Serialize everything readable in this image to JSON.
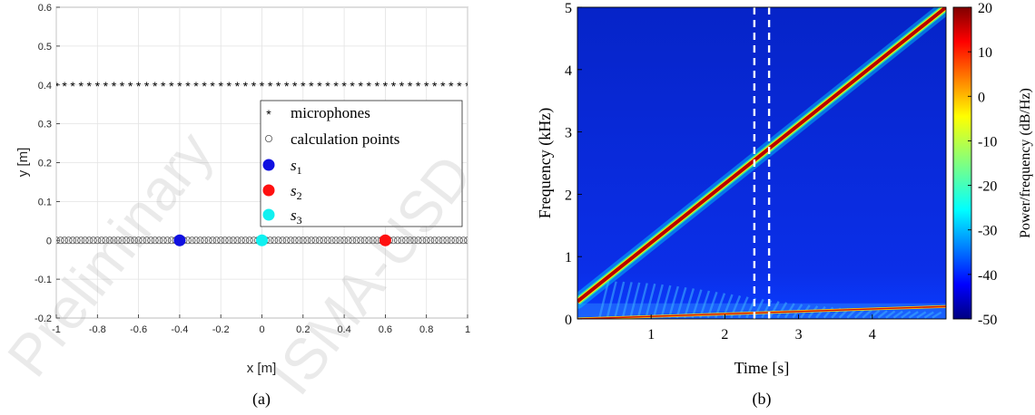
{
  "chart_data": [
    {
      "type": "scatter",
      "caption": "(a)",
      "xlabel": "x [m]",
      "ylabel": "y [m]",
      "xlim": [
        -1,
        1
      ],
      "ylim": [
        -0.2,
        0.6
      ],
      "xticks": [
        -1,
        -0.8,
        -0.6,
        -0.4,
        -0.2,
        0,
        0.2,
        0.4,
        0.6,
        0.8,
        1
      ],
      "yticks": [
        -0.2,
        -0.1,
        0,
        0.1,
        0.2,
        0.3,
        0.4,
        0.5,
        0.6
      ],
      "xtick_labels": [
        "-1",
        "-0.8",
        "-0.6",
        "-0.4",
        "-0.2",
        "0",
        "0.2",
        "0.4",
        "0.6",
        "0.8",
        "1"
      ],
      "ytick_labels": [
        "-0.2",
        "-0.1",
        "0",
        "0.1",
        "0.2",
        "0.3",
        "0.4",
        "0.5",
        "0.6"
      ],
      "grid": true,
      "legend_position": "right",
      "series": [
        {
          "name": "microphones",
          "marker": "asterisk",
          "color": "#000000",
          "y": 0.4,
          "x_range": [
            -1,
            1
          ],
          "count": 51
        },
        {
          "name": "calculation points",
          "marker": "open-circle",
          "color": "#555555",
          "y": 0,
          "x_range": [
            -1,
            1
          ],
          "count": 101
        },
        {
          "name": "s1",
          "marker": "filled-circle",
          "color": "#1010e0",
          "x": [
            -0.4
          ],
          "y": [
            0
          ]
        },
        {
          "name": "s2",
          "marker": "filled-circle",
          "color": "#ff1010",
          "x": [
            0.6
          ],
          "y": [
            0
          ]
        },
        {
          "name": "s3",
          "marker": "filled-circle",
          "color": "#10f0f0",
          "x": [
            0
          ],
          "y": [
            0
          ]
        }
      ],
      "legend_labels": {
        "s1_base": "s",
        "s1_sub": "1",
        "s2_base": "s",
        "s2_sub": "2",
        "s3_base": "s",
        "s3_sub": "3"
      }
    },
    {
      "type": "heatmap",
      "caption": "(b)",
      "xlabel": "Time [s]",
      "ylabel": "Frequency (kHz)",
      "colorbar_label": "Power/frequency (dB/Hz)",
      "xlim": [
        0,
        5
      ],
      "ylim": [
        0,
        5
      ],
      "xticks": [
        1,
        2,
        3,
        4
      ],
      "yticks": [
        0,
        1,
        2,
        3,
        4,
        5
      ],
      "xtick_labels": [
        "1",
        "2",
        "3",
        "4"
      ],
      "ytick_labels": [
        "0",
        "1",
        "2",
        "3",
        "4",
        "5"
      ],
      "colorbar_range": [
        -50,
        20
      ],
      "colorbar_ticks": [
        20,
        10,
        0,
        -10,
        -20,
        -30,
        -40,
        -50
      ],
      "colorbar_tick_labels": [
        "20",
        "10",
        "0",
        "-10",
        "-20",
        "-30",
        "-40",
        "-50"
      ],
      "background_level_db": -45,
      "chirp": {
        "t": [
          0,
          5
        ],
        "f_khz": [
          0.28,
          5.0
        ],
        "level_db": 20
      },
      "low_line": {
        "t": [
          0,
          5
        ],
        "f_khz": [
          0.0,
          0.2
        ]
      },
      "dashed_markers_s": [
        2.4,
        2.6
      ],
      "dashed_color": "#ffffff"
    }
  ]
}
